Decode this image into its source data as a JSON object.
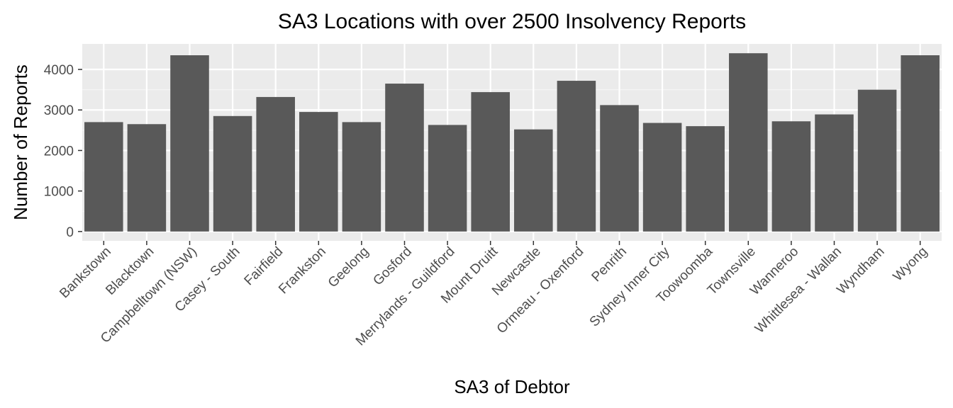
{
  "chart_data": {
    "type": "bar",
    "title": "SA3 Locations with over 2500 Insolvency Reports",
    "xlabel": "SA3 of Debtor",
    "ylabel": "Number of Reports",
    "categories": [
      "Bankstown",
      "Blacktown",
      "Campbelltown (NSW)",
      "Casey - South",
      "Fairfield",
      "Frankston",
      "Geelong",
      "Gosford",
      "Merrylands - Guildford",
      "Mount Druitt",
      "Newcastle",
      "Ormeau - Oxenford",
      "Penrith",
      "Sydney Inner City",
      "Toowoomba",
      "Townsville",
      "Wanneroo",
      "Whittlesea - Wallan",
      "Wyndham",
      "Wyong"
    ],
    "values": [
      2700,
      2650,
      4350,
      2850,
      3320,
      2950,
      2700,
      3650,
      2630,
      3440,
      2520,
      3720,
      3120,
      2680,
      2600,
      4400,
      2720,
      2890,
      3500,
      4350
    ],
    "yticks": [
      0,
      1000,
      2000,
      3000,
      4000
    ],
    "ylim": [
      -230,
      4630
    ],
    "grid": true,
    "colors": {
      "bar": "#595959",
      "panel": "#ebebeb",
      "grid_major": "#ffffff",
      "grid_minor": "#f5f5f5",
      "tick_text": "#4d4d4d",
      "tick_mark": "#333333"
    }
  }
}
